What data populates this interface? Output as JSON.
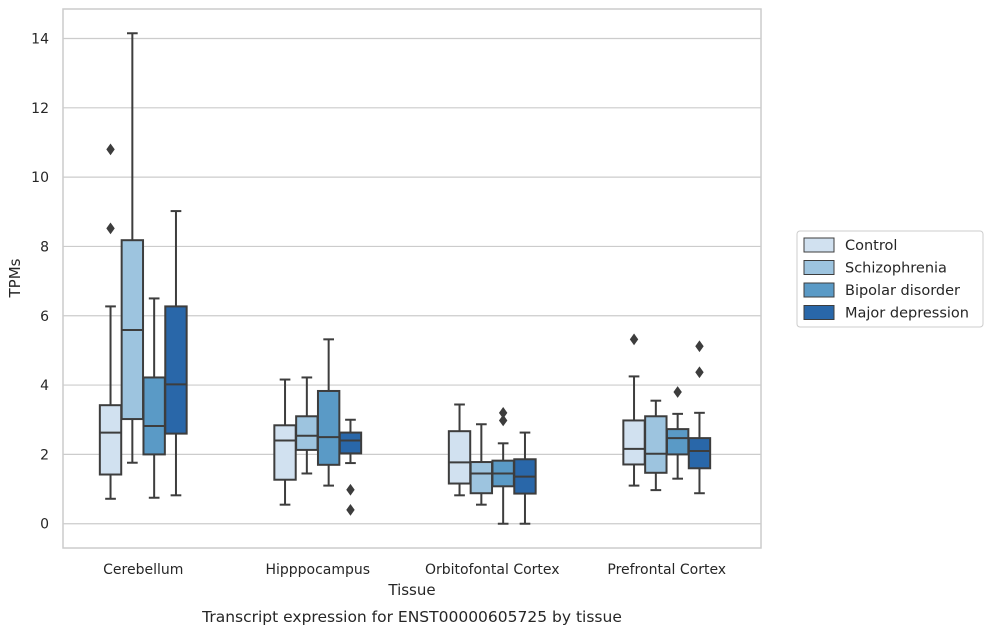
{
  "chart_data": {
    "type": "box",
    "caption": "Transcript expression for ENST00000605725 by tissue",
    "xlabel": "Tissue",
    "ylabel": "TPMs",
    "ylim": [
      -0.7,
      14.85
    ],
    "yticks": [
      0,
      2,
      4,
      6,
      8,
      10,
      12,
      14
    ],
    "grid": "horizontal",
    "legend_position": "right",
    "categories": [
      "Cerebellum",
      "Hipppocampus",
      "Orbitofontal Cortex",
      "Prefrontal Cortex"
    ],
    "series": [
      {
        "name": "Control",
        "color": "#d1e1f0",
        "boxes": [
          {
            "whisker_low": 0.72,
            "q1": 1.42,
            "median": 2.63,
            "q3": 3.42,
            "whisker_high": 6.27,
            "outliers": [
              8.52,
              10.8
            ]
          },
          {
            "whisker_low": 0.55,
            "q1": 1.27,
            "median": 2.4,
            "q3": 2.84,
            "whisker_high": 4.16,
            "outliers": []
          },
          {
            "whisker_low": 0.82,
            "q1": 1.16,
            "median": 1.77,
            "q3": 2.67,
            "whisker_high": 3.44,
            "outliers": []
          },
          {
            "whisker_low": 1.1,
            "q1": 1.71,
            "median": 2.16,
            "q3": 2.98,
            "whisker_high": 4.25,
            "outliers": [
              5.32
            ]
          }
        ]
      },
      {
        "name": "Schizophrenia",
        "color": "#9dc4df",
        "boxes": [
          {
            "whisker_low": 1.76,
            "q1": 3.02,
            "median": 5.59,
            "q3": 8.18,
            "whisker_high": 14.15,
            "outliers": []
          },
          {
            "whisker_low": 1.45,
            "q1": 2.13,
            "median": 2.54,
            "q3": 3.1,
            "whisker_high": 4.22,
            "outliers": []
          },
          {
            "whisker_low": 0.55,
            "q1": 0.88,
            "median": 1.45,
            "q3": 1.78,
            "whisker_high": 2.87,
            "outliers": []
          },
          {
            "whisker_low": 0.97,
            "q1": 1.47,
            "median": 2.02,
            "q3": 3.1,
            "whisker_high": 3.55,
            "outliers": []
          }
        ]
      },
      {
        "name": "Bipolar disorder",
        "color": "#5a9ac6",
        "boxes": [
          {
            "whisker_low": 0.75,
            "q1": 2.0,
            "median": 2.82,
            "q3": 4.22,
            "whisker_high": 6.5,
            "outliers": []
          },
          {
            "whisker_low": 1.1,
            "q1": 1.7,
            "median": 2.5,
            "q3": 3.83,
            "whisker_high": 5.32,
            "outliers": []
          },
          {
            "whisker_low": 0.0,
            "q1": 1.08,
            "median": 1.45,
            "q3": 1.82,
            "whisker_high": 2.32,
            "outliers": [
              2.98,
              3.2
            ]
          },
          {
            "whisker_low": 1.3,
            "q1": 2.0,
            "median": 2.47,
            "q3": 2.73,
            "whisker_high": 3.17,
            "outliers": [
              3.8
            ]
          }
        ]
      },
      {
        "name": "Major depression",
        "color": "#2967a9",
        "boxes": [
          {
            "whisker_low": 0.82,
            "q1": 2.6,
            "median": 4.02,
            "q3": 6.27,
            "whisker_high": 9.02,
            "outliers": []
          },
          {
            "whisker_low": 1.75,
            "q1": 2.03,
            "median": 2.4,
            "q3": 2.63,
            "whisker_high": 3.0,
            "outliers": [
              0.4,
              0.98
            ]
          },
          {
            "whisker_low": 0.0,
            "q1": 0.87,
            "median": 1.36,
            "q3": 1.86,
            "whisker_high": 2.63,
            "outliers": []
          },
          {
            "whisker_low": 0.88,
            "q1": 1.6,
            "median": 2.1,
            "q3": 2.47,
            "whisker_high": 3.2,
            "outliers": [
              4.37,
              5.12
            ]
          }
        ]
      }
    ]
  }
}
